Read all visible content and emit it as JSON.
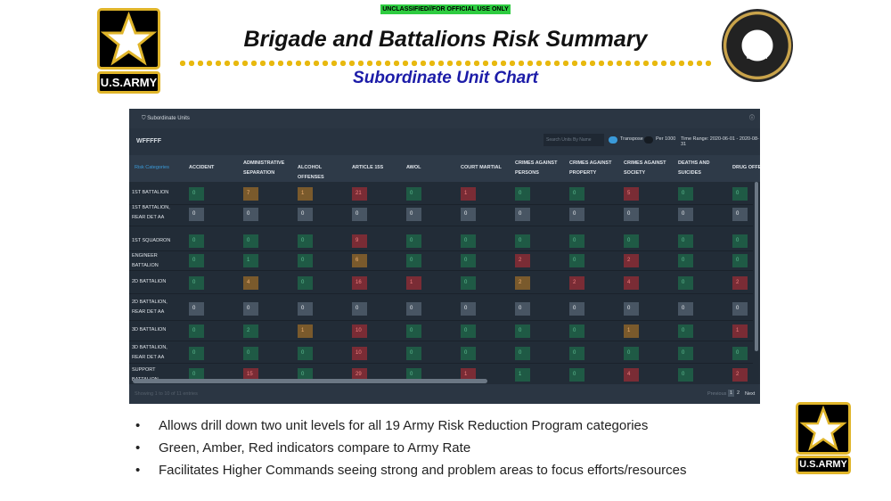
{
  "banner": "UNCLASSIFIED//FOR OFFICIAL USE ONLY",
  "title": "Brigade and Battalions Risk Summary",
  "subtitle": "Subordinate Unit Chart",
  "logo_text": "U.S.ARMY",
  "seal_text": "U.S.ARMY",
  "panel": {
    "title": "Subordinate Units",
    "unit": "WFFFFF",
    "search_placeholder": "Search Units By Name",
    "transpose_label": "Transpose",
    "transpose_on": true,
    "per1000_label": "Per 1000",
    "per1000_on": false,
    "time_range": "Time Range: 2020-06-01 - 2020-08-31",
    "first_header": "Risk Categories",
    "columns": [
      "ACCIDENT",
      "ADMINISTRATIVE SEPARATION",
      "ALCOHOL OFFENSES",
      "ARTICLE 15S",
      "AWOL",
      "COURT MARTIAL",
      "CRIMES AGAINST PERSONS",
      "CRIMES AGAINST PROPERTY",
      "CRIMES AGAINST SOCIETY",
      "DEATHS AND SUICIDES",
      "DRUG OFFENSES"
    ],
    "status_colors": {
      "g": "#1f5a45",
      "a": "#7a5a2c",
      "r": "#7a2c35",
      "n": "#485563"
    },
    "rows": [
      {
        "unit": "1ST BATTALION",
        "cells": [
          [
            "0",
            "g"
          ],
          [
            "7",
            "a"
          ],
          [
            "1",
            "a"
          ],
          [
            "21",
            "r"
          ],
          [
            "0",
            "g"
          ],
          [
            "1",
            "r"
          ],
          [
            "0",
            "g"
          ],
          [
            "0",
            "g"
          ],
          [
            "5",
            "r"
          ],
          [
            "0",
            "g"
          ],
          [
            "0",
            "g"
          ]
        ]
      },
      {
        "unit": "1ST BATTALION, REAR DET AA",
        "cells": [
          [
            "0",
            "n"
          ],
          [
            "0",
            "n"
          ],
          [
            "0",
            "n"
          ],
          [
            "0",
            "n"
          ],
          [
            "0",
            "n"
          ],
          [
            "0",
            "n"
          ],
          [
            "0",
            "n"
          ],
          [
            "0",
            "n"
          ],
          [
            "0",
            "n"
          ],
          [
            "0",
            "n"
          ],
          [
            "0",
            "n"
          ]
        ]
      },
      {
        "unit": "1ST SQUADRON",
        "cells": [
          [
            "0",
            "g"
          ],
          [
            "0",
            "g"
          ],
          [
            "0",
            "g"
          ],
          [
            "9",
            "r"
          ],
          [
            "0",
            "g"
          ],
          [
            "0",
            "g"
          ],
          [
            "0",
            "g"
          ],
          [
            "0",
            "g"
          ],
          [
            "0",
            "g"
          ],
          [
            "0",
            "g"
          ],
          [
            "0",
            "g"
          ]
        ]
      },
      {
        "unit": "ENGINEER BATTALION",
        "cells": [
          [
            "0",
            "g"
          ],
          [
            "1",
            "g"
          ],
          [
            "0",
            "g"
          ],
          [
            "6",
            "a"
          ],
          [
            "0",
            "g"
          ],
          [
            "0",
            "g"
          ],
          [
            "2",
            "r"
          ],
          [
            "0",
            "g"
          ],
          [
            "2",
            "r"
          ],
          [
            "0",
            "g"
          ],
          [
            "0",
            "g"
          ]
        ]
      },
      {
        "unit": "2D BATTALION",
        "cells": [
          [
            "0",
            "g"
          ],
          [
            "4",
            "a"
          ],
          [
            "0",
            "g"
          ],
          [
            "16",
            "r"
          ],
          [
            "1",
            "r"
          ],
          [
            "0",
            "g"
          ],
          [
            "2",
            "a"
          ],
          [
            "2",
            "r"
          ],
          [
            "4",
            "r"
          ],
          [
            "0",
            "g"
          ],
          [
            "2",
            "r"
          ]
        ]
      },
      {
        "unit": "2D BATTALION, REAR DET AA",
        "cells": [
          [
            "0",
            "n"
          ],
          [
            "0",
            "n"
          ],
          [
            "0",
            "n"
          ],
          [
            "0",
            "n"
          ],
          [
            "0",
            "n"
          ],
          [
            "0",
            "n"
          ],
          [
            "0",
            "n"
          ],
          [
            "0",
            "n"
          ],
          [
            "0",
            "n"
          ],
          [
            "0",
            "n"
          ],
          [
            "0",
            "n"
          ]
        ]
      },
      {
        "unit": "3D BATTALION",
        "cells": [
          [
            "0",
            "g"
          ],
          [
            "2",
            "g"
          ],
          [
            "1",
            "a"
          ],
          [
            "10",
            "r"
          ],
          [
            "0",
            "g"
          ],
          [
            "0",
            "g"
          ],
          [
            "0",
            "g"
          ],
          [
            "0",
            "g"
          ],
          [
            "1",
            "a"
          ],
          [
            "0",
            "g"
          ],
          [
            "1",
            "r"
          ]
        ]
      },
      {
        "unit": "3D BATTALION, REAR DET AA",
        "cells": [
          [
            "0",
            "g"
          ],
          [
            "0",
            "g"
          ],
          [
            "0",
            "g"
          ],
          [
            "10",
            "r"
          ],
          [
            "0",
            "g"
          ],
          [
            "0",
            "g"
          ],
          [
            "0",
            "g"
          ],
          [
            "0",
            "g"
          ],
          [
            "0",
            "g"
          ],
          [
            "0",
            "g"
          ],
          [
            "0",
            "g"
          ]
        ]
      },
      {
        "unit": "SUPPORT BATTALION",
        "cells": [
          [
            "0",
            "g"
          ],
          [
            "15",
            "r"
          ],
          [
            "0",
            "g"
          ],
          [
            "29",
            "r"
          ],
          [
            "0",
            "g"
          ],
          [
            "1",
            "r"
          ],
          [
            "1",
            "g"
          ],
          [
            "0",
            "g"
          ],
          [
            "4",
            "r"
          ],
          [
            "0",
            "g"
          ],
          [
            "2",
            "r"
          ]
        ]
      }
    ],
    "entries": "Showing 1 to 10 of 11 entries",
    "prev": "Previous",
    "pages": [
      "1",
      "2"
    ],
    "next": "Next"
  },
  "bullets": [
    "Allows drill down two unit levels for all 19 Army Risk Reduction Program categories",
    "Green, Amber, Red indicators compare to Army Rate",
    "Facilitates Higher Commands seeing strong and problem areas to focus efforts/resources"
  ]
}
